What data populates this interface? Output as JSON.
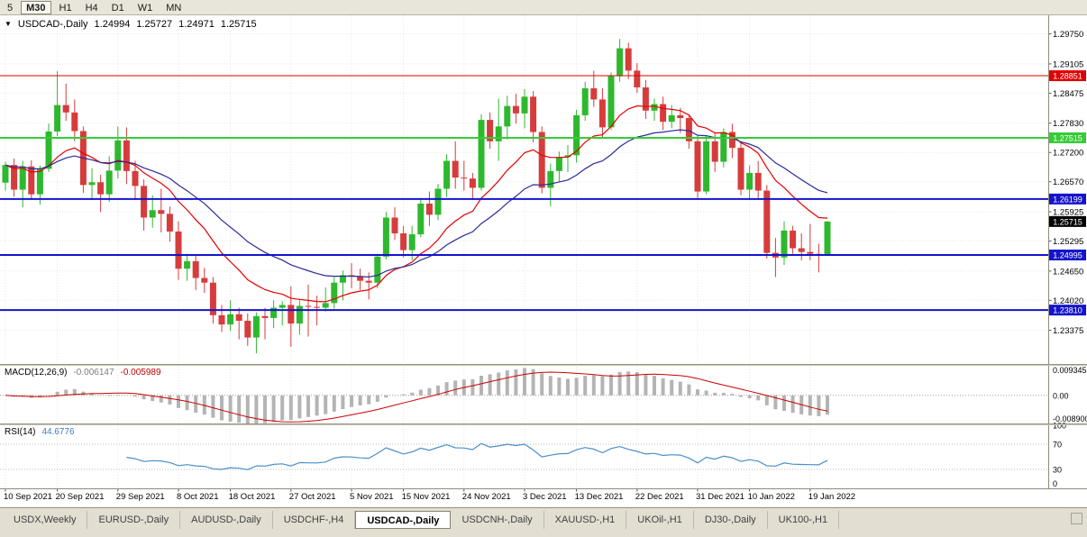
{
  "toolbar": {
    "timeframes": [
      {
        "label": "5",
        "active": false
      },
      {
        "label": "M30",
        "active": true
      },
      {
        "label": "H1",
        "active": false
      },
      {
        "label": "H4",
        "active": false
      },
      {
        "label": "D1",
        "active": false
      },
      {
        "label": "W1",
        "active": false
      },
      {
        "label": "MN",
        "active": false
      }
    ]
  },
  "chart": {
    "title_symbol": "USDCAD-,Daily",
    "ohlc": {
      "open": "1.24994",
      "high": "1.25727",
      "low": "1.24971",
      "close": "1.25715"
    }
  },
  "macd_panel": {
    "label": "MACD(12,26,9)",
    "value_main": "-0.006147",
    "value_signal": "-0.005989",
    "axis": {
      "top": "0.009345",
      "zero": "0.00",
      "bottom": "-0.008900"
    }
  },
  "rsi_panel": {
    "label": "RSI(14)",
    "value": "44.6776",
    "axis": [
      "100",
      "70",
      "30",
      "0"
    ]
  },
  "tabs": [
    {
      "label": "USDX,Weekly",
      "active": false
    },
    {
      "label": "EURUSD-,Daily",
      "active": false
    },
    {
      "label": "AUDUSD-,Daily",
      "active": false
    },
    {
      "label": "USDCHF-,H4",
      "active": false
    },
    {
      "label": "USDCAD-,Daily",
      "active": true
    },
    {
      "label": "USDCNH-,Daily",
      "active": false
    },
    {
      "label": "XAUUSD-,H1",
      "active": false
    },
    {
      "label": "UKOil-,H1",
      "active": false
    },
    {
      "label": "DJ30-,Daily",
      "active": false
    },
    {
      "label": "UK100-,H1",
      "active": false
    }
  ],
  "colors": {
    "candle_up": "#2eb82e",
    "candle_down": "#d63c3c",
    "ma_fast": "#e60000",
    "ma_slow": "#2a2a9a",
    "current_badge": "#000000",
    "macd_hist": "#b4b4b4",
    "macd_signal": "#cc0000",
    "rsi_line": "#4a90c8",
    "grid": "#e7e7e7"
  },
  "chart_data": {
    "type": "candlestick",
    "symbol": "USDCAD",
    "timeframe": "Daily",
    "price_axis": {
      "min": 1.2265,
      "max": 1.3015,
      "ticks": [
        1.2975,
        1.29105,
        1.28475,
        1.2783,
        1.272,
        1.2657,
        1.25925,
        1.25295,
        1.2465,
        1.2402,
        1.23375
      ]
    },
    "x_labels": [
      {
        "bar": 0,
        "text": "10 Sep 2021"
      },
      {
        "bar": 6,
        "text": "20 Sep 2021"
      },
      {
        "bar": 13,
        "text": "29 Sep 2021"
      },
      {
        "bar": 20,
        "text": "8 Oct 2021"
      },
      {
        "bar": 26,
        "text": "18 Oct 2021"
      },
      {
        "bar": 33,
        "text": "27 Oct 2021"
      },
      {
        "bar": 40,
        "text": "5 Nov 2021"
      },
      {
        "bar": 46,
        "text": "15 Nov 2021"
      },
      {
        "bar": 53,
        "text": "24 Nov 2021"
      },
      {
        "bar": 60,
        "text": "3 Dec 2021"
      },
      {
        "bar": 66,
        "text": "13 Dec 2021"
      },
      {
        "bar": 73,
        "text": "22 Dec 2021"
      },
      {
        "bar": 80,
        "text": "31 Dec 2021"
      },
      {
        "bar": 86,
        "text": "10 Jan 2022"
      },
      {
        "bar": 93,
        "text": "19 Jan 2022"
      }
    ],
    "candles": [
      [
        1.2655,
        1.27,
        1.2638,
        1.2693
      ],
      [
        1.2693,
        1.2707,
        1.2625,
        1.264
      ],
      [
        1.264,
        1.2702,
        1.2602,
        1.269
      ],
      [
        1.269,
        1.2703,
        1.2618,
        1.263
      ],
      [
        1.263,
        1.2692,
        1.2608,
        1.2685
      ],
      [
        1.2685,
        1.2782,
        1.2678,
        1.2765
      ],
      [
        1.2765,
        1.2895,
        1.2755,
        1.2822
      ],
      [
        1.2822,
        1.2868,
        1.2788,
        1.2806
      ],
      [
        1.2806,
        1.2834,
        1.2744,
        1.2766
      ],
      [
        1.2766,
        1.2776,
        1.2633,
        1.265
      ],
      [
        1.265,
        1.2686,
        1.2618,
        1.2656
      ],
      [
        1.2656,
        1.2672,
        1.2592,
        1.263
      ],
      [
        1.263,
        1.2712,
        1.2614,
        1.2681
      ],
      [
        1.2681,
        1.2776,
        1.2664,
        1.2746
      ],
      [
        1.2746,
        1.2774,
        1.2652,
        1.268
      ],
      [
        1.268,
        1.2702,
        1.2618,
        1.2648
      ],
      [
        1.2648,
        1.2662,
        1.2552,
        1.258
      ],
      [
        1.258,
        1.2628,
        1.2558,
        1.2596
      ],
      [
        1.2596,
        1.2642,
        1.2548,
        1.2588
      ],
      [
        1.2588,
        1.2604,
        1.2528,
        1.255
      ],
      [
        1.255,
        1.2572,
        1.2446,
        1.247
      ],
      [
        1.247,
        1.2502,
        1.2444,
        1.2486
      ],
      [
        1.2486,
        1.25,
        1.2424,
        1.245
      ],
      [
        1.245,
        1.2472,
        1.2418,
        1.244
      ],
      [
        1.244,
        1.2452,
        1.2352,
        1.237
      ],
      [
        1.237,
        1.2392,
        1.2334,
        1.235
      ],
      [
        1.235,
        1.2402,
        1.2336,
        1.2372
      ],
      [
        1.2372,
        1.2386,
        1.2318,
        1.2358
      ],
      [
        1.2358,
        1.2374,
        1.2304,
        1.2322
      ],
      [
        1.2322,
        1.2376,
        1.2288,
        1.2368
      ],
      [
        1.2368,
        1.2386,
        1.2318,
        1.2364
      ],
      [
        1.2364,
        1.2402,
        1.2342,
        1.2386
      ],
      [
        1.2386,
        1.24,
        1.2348,
        1.2392
      ],
      [
        1.2392,
        1.2432,
        1.2302,
        1.2352
      ],
      [
        1.2352,
        1.2402,
        1.2328,
        1.239
      ],
      [
        1.239,
        1.2436,
        1.2324,
        1.2388
      ],
      [
        1.2388,
        1.2412,
        1.2348,
        1.2386
      ],
      [
        1.2386,
        1.243,
        1.2378,
        1.2396
      ],
      [
        1.2396,
        1.2452,
        1.2384,
        1.244
      ],
      [
        1.244,
        1.2466,
        1.2402,
        1.2456
      ],
      [
        1.2456,
        1.2482,
        1.2428,
        1.2454
      ],
      [
        1.2454,
        1.247,
        1.2424,
        1.2444
      ],
      [
        1.2444,
        1.2462,
        1.2404,
        1.244
      ],
      [
        1.244,
        1.2502,
        1.2428,
        1.2496
      ],
      [
        1.2496,
        1.2592,
        1.249,
        1.258
      ],
      [
        1.258,
        1.2602,
        1.2532,
        1.2546
      ],
      [
        1.2546,
        1.2562,
        1.2494,
        1.251
      ],
      [
        1.251,
        1.2562,
        1.2488,
        1.2544
      ],
      [
        1.2544,
        1.2622,
        1.2538,
        1.261
      ],
      [
        1.261,
        1.2636,
        1.2562,
        1.2586
      ],
      [
        1.2586,
        1.2652,
        1.2574,
        1.2642
      ],
      [
        1.2642,
        1.2716,
        1.2624,
        1.2702
      ],
      [
        1.2702,
        1.2744,
        1.2642,
        1.2666
      ],
      [
        1.2666,
        1.2702,
        1.2638,
        1.2664
      ],
      [
        1.2664,
        1.2676,
        1.2618,
        1.2644
      ],
      [
        1.2644,
        1.2802,
        1.2638,
        1.279
      ],
      [
        1.279,
        1.2806,
        1.2728,
        1.2744
      ],
      [
        1.2744,
        1.2836,
        1.2702,
        1.2776
      ],
      [
        1.2776,
        1.2842,
        1.2748,
        1.282
      ],
      [
        1.282,
        1.2846,
        1.2782,
        1.2804
      ],
      [
        1.2804,
        1.2856,
        1.2772,
        1.284
      ],
      [
        1.284,
        1.2852,
        1.2742,
        1.2764
      ],
      [
        1.2764,
        1.2776,
        1.2632,
        1.2644
      ],
      [
        1.2644,
        1.2696,
        1.2604,
        1.268
      ],
      [
        1.268,
        1.2722,
        1.2658,
        1.271
      ],
      [
        1.271,
        1.2736,
        1.2678,
        1.2714
      ],
      [
        1.2714,
        1.2812,
        1.2698,
        1.28
      ],
      [
        1.28,
        1.2872,
        1.2788,
        1.2858
      ],
      [
        1.2858,
        1.2896,
        1.2818,
        1.2834
      ],
      [
        1.2834,
        1.2858,
        1.2752,
        1.2774
      ],
      [
        1.2774,
        1.2892,
        1.2768,
        1.2884
      ],
      [
        1.2884,
        1.2964,
        1.2872,
        1.2944
      ],
      [
        1.2944,
        1.2956,
        1.2878,
        1.2896
      ],
      [
        1.2896,
        1.2912,
        1.2848,
        1.286
      ],
      [
        1.286,
        1.2876,
        1.2792,
        1.281
      ],
      [
        1.281,
        1.2836,
        1.2788,
        1.2824
      ],
      [
        1.2824,
        1.284,
        1.2768,
        1.2786
      ],
      [
        1.2786,
        1.2822,
        1.2772,
        1.28
      ],
      [
        1.28,
        1.2816,
        1.2762,
        1.2794
      ],
      [
        1.2794,
        1.28,
        1.2728,
        1.2744
      ],
      [
        1.2744,
        1.2756,
        1.2622,
        1.2636
      ],
      [
        1.2636,
        1.2756,
        1.263,
        1.2744
      ],
      [
        1.2744,
        1.2762,
        1.2678,
        1.27
      ],
      [
        1.27,
        1.2772,
        1.2688,
        1.2764
      ],
      [
        1.2764,
        1.2782,
        1.2708,
        1.273
      ],
      [
        1.273,
        1.2742,
        1.2628,
        1.264
      ],
      [
        1.264,
        1.2692,
        1.2618,
        1.2676
      ],
      [
        1.2676,
        1.2702,
        1.2622,
        1.2638
      ],
      [
        1.2638,
        1.265,
        1.2492,
        1.2504
      ],
      [
        1.2504,
        1.2536,
        1.2452,
        1.2494
      ],
      [
        1.2494,
        1.2572,
        1.2478,
        1.2552
      ],
      [
        1.2552,
        1.2562,
        1.2502,
        1.2514
      ],
      [
        1.2514,
        1.2546,
        1.2488,
        1.2506
      ],
      [
        1.2506,
        1.2566,
        1.2488,
        1.2502
      ],
      [
        1.2502,
        1.2524,
        1.2462,
        1.2498
      ],
      [
        1.24994,
        1.25727,
        1.24971,
        1.25715
      ]
    ],
    "overlays": [
      {
        "type": "ema",
        "period": 13,
        "color": "#e60000"
      },
      {
        "type": "ema",
        "period": 26,
        "color": "#2a2a9a"
      }
    ],
    "hlines": [
      {
        "price": 1.28851,
        "label": "1.28851",
        "color": "#e00000",
        "width": 1
      },
      {
        "price": 1.27515,
        "label": "1.27515",
        "color": "#35cc35",
        "width": 2
      },
      {
        "price": 1.26199,
        "label": "1.26199",
        "color": "#1414cc",
        "width": 2
      },
      {
        "price": 1.24995,
        "label": "1.24995",
        "color": "#1414cc",
        "width": 2
      },
      {
        "price": 1.2381,
        "label": "1.23810",
        "color": "#1414cc",
        "width": 2
      }
    ],
    "current_price": {
      "value": 1.25715,
      "label": "1.25715"
    },
    "macd": {
      "fast": 12,
      "slow": 26,
      "signal": 9,
      "range": {
        "max": 0.009345,
        "min": -0.0089
      }
    },
    "rsi": {
      "period": 14,
      "levels": [
        70,
        30
      ]
    }
  }
}
